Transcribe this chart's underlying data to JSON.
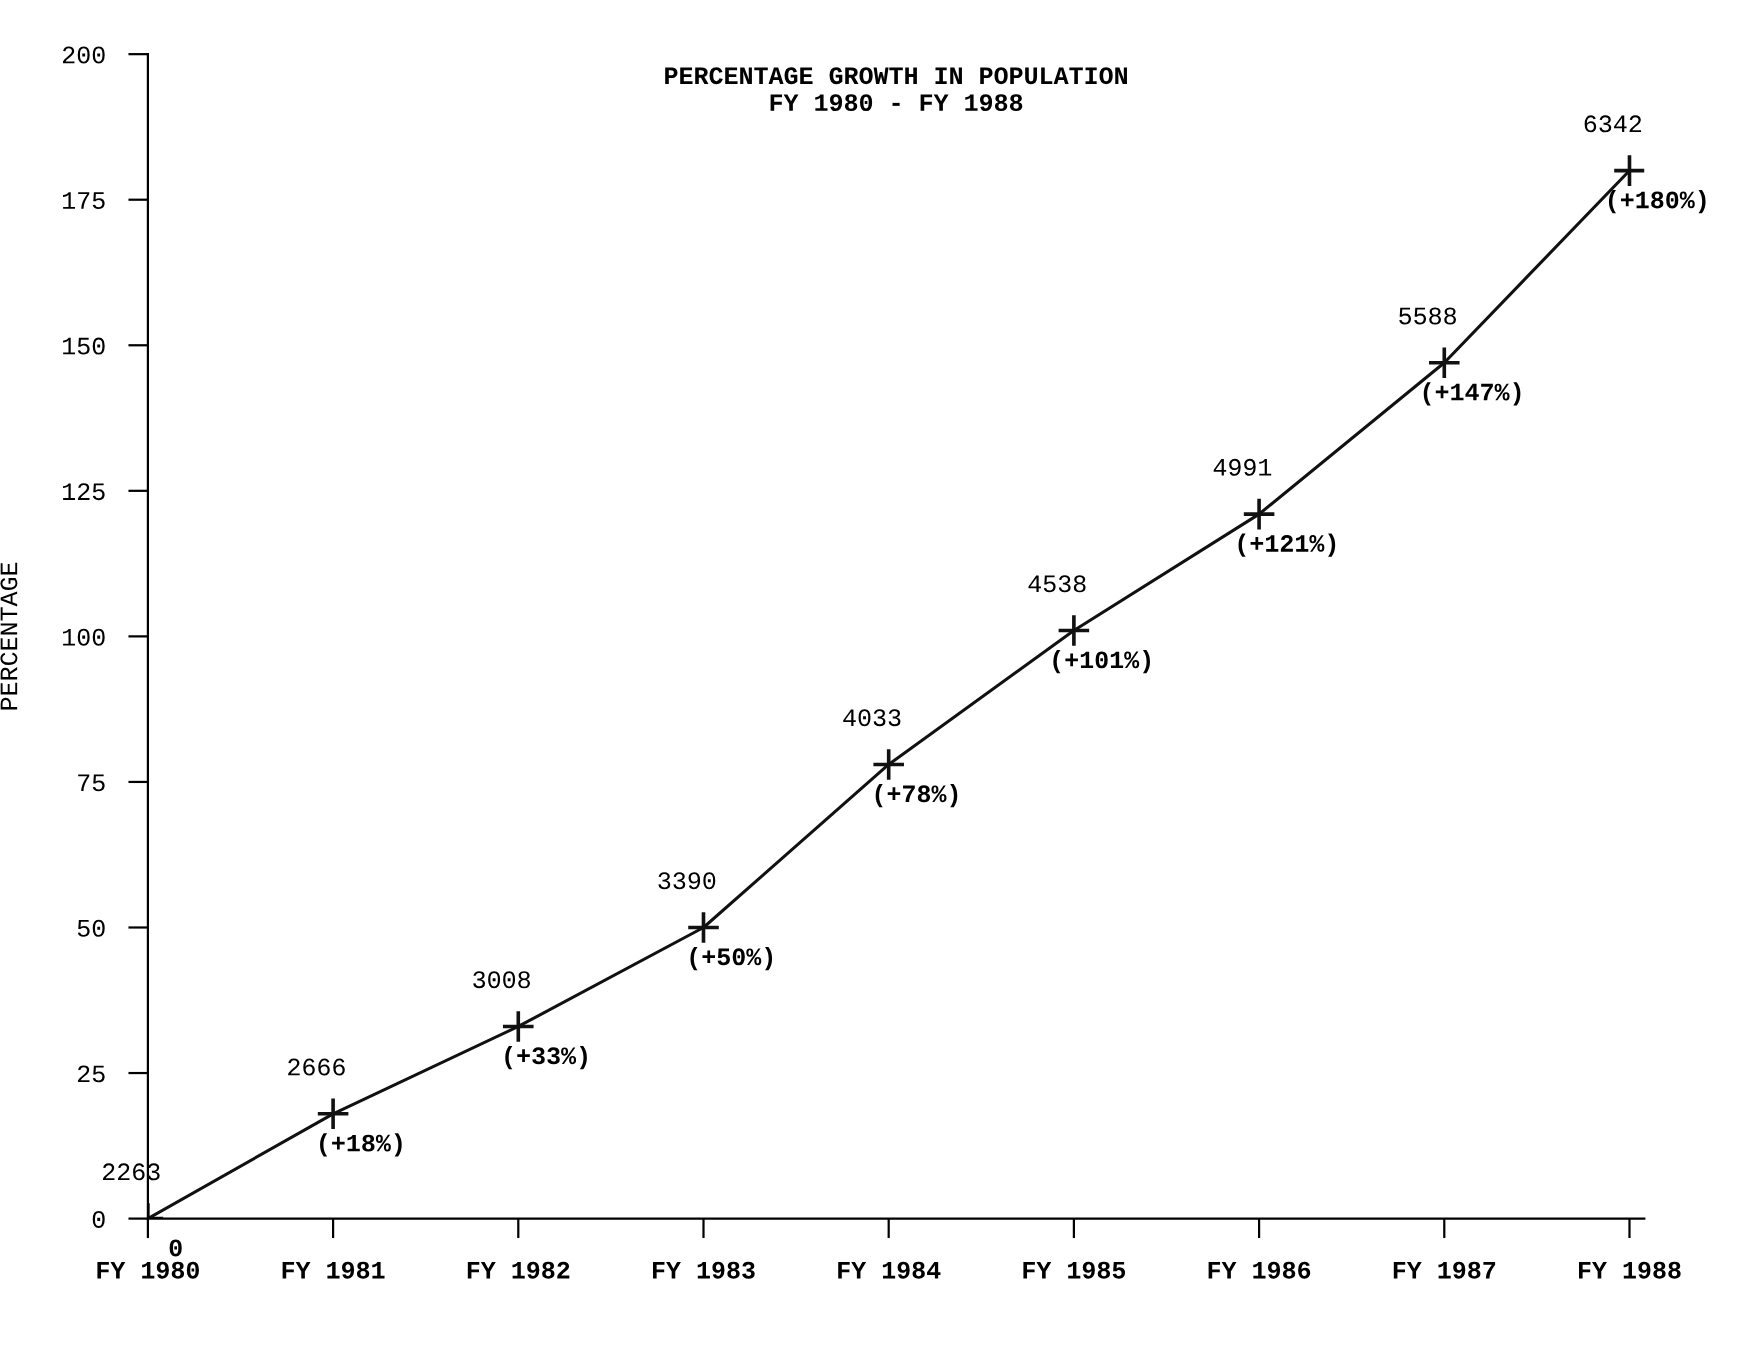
{
  "chart_data": {
    "type": "line",
    "title": "PERCENTAGE GROWTH IN POPULATION\nFY 1980 - FY 1988",
    "ylabel": "PERCENTAGE",
    "categories": [
      "FY 1980",
      "FY 1981",
      "FY 1982",
      "FY 1983",
      "FY 1984",
      "FY 1985",
      "FY 1986",
      "FY 1987",
      "FY 1988"
    ],
    "values": [
      0,
      18,
      33,
      50,
      78,
      101,
      121,
      147,
      180
    ],
    "value_labels": [
      "2263\n0",
      "2666\n(+18%)",
      "3008\n(+33%)",
      "3390\n(+50%)",
      "4033\n(+78%)",
      "4538\n(+101%)",
      "4991\n(+121%)",
      "5588\n(+147%)",
      "6342\n(+180%)"
    ],
    "color": "#111111",
    "marker": "cross",
    "line_style": "solid",
    "ylim": [
      0,
      200
    ],
    "yticks": [
      0,
      25,
      50,
      75,
      100,
      125,
      150,
      175,
      200
    ],
    "grid": false
  }
}
